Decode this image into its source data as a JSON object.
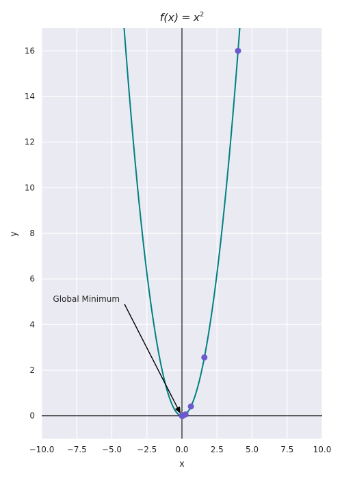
{
  "chart_data": {
    "type": "line",
    "title_function": "f(x)",
    "title_equals": "=",
    "title_base": "x",
    "title_exponent": "2",
    "xlabel": "x",
    "ylabel": "y",
    "xlim": [
      -10,
      10
    ],
    "ylim": [
      -1,
      17
    ],
    "xticks": [
      -10,
      -7.5,
      -5,
      -2.5,
      0,
      2.5,
      5,
      7.5,
      10
    ],
    "xtick_labels": [
      "−10.0",
      "−7.5",
      "−5.0",
      "−2.5",
      "0.0",
      "2.5",
      "5.0",
      "7.5",
      "10.0"
    ],
    "yticks": [
      0,
      2,
      4,
      6,
      8,
      10,
      12,
      14,
      16
    ],
    "ytick_labels": [
      "0",
      "2",
      "4",
      "6",
      "8",
      "10",
      "12",
      "14",
      "16"
    ],
    "grid": true,
    "background_color": "#EAEAF2",
    "curve": {
      "name": "f(x) = x^2",
      "x_range": [
        -5,
        5
      ],
      "color": "#008080"
    },
    "points": {
      "color": "#6A5ACD",
      "x": [
        0,
        0.0625,
        0.25,
        0.64,
        1.6,
        4
      ],
      "y": [
        0,
        0.0039,
        0.0625,
        0.41,
        2.56,
        16
      ]
    },
    "annotation": {
      "text": "Global Minimum",
      "xy": [
        0,
        0
      ],
      "xytext": [
        -9.2,
        5.0
      ]
    },
    "axis_lines": {
      "x_zero": true,
      "y_zero": true,
      "color": "#000000"
    }
  }
}
